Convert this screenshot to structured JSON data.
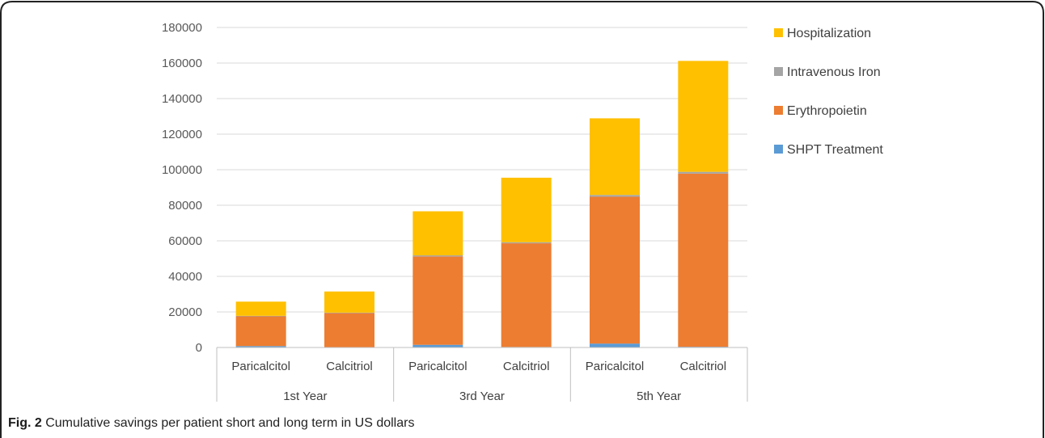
{
  "chart_data": {
    "type": "bar",
    "stacked": true,
    "groups": [
      "1st Year",
      "3rd Year",
      "5th Year"
    ],
    "categories": [
      "Paricalcitol",
      "Calcitriol",
      "Paricalcitol",
      "Calcitriol",
      "Paricalcitol",
      "Calcitriol"
    ],
    "series": [
      {
        "name": "SHPT Treatment",
        "color": "#5B9BD5",
        "values": [
          800,
          200,
          1500,
          300,
          2200,
          400
        ]
      },
      {
        "name": "Erythropoietin",
        "color": "#ED7D31",
        "values": [
          16700,
          19100,
          49700,
          58300,
          82600,
          97400
        ]
      },
      {
        "name": "Intravenous Iron",
        "color": "#A5A5A5",
        "values": [
          300,
          300,
          600,
          600,
          1000,
          1000
        ]
      },
      {
        "name": "Hospitalization",
        "color": "#FFC000",
        "values": [
          8000,
          11900,
          24800,
          36300,
          43100,
          62400
        ]
      }
    ],
    "yticks": [
      "0",
      "20000",
      "40000",
      "60000",
      "80000",
      "100000",
      "120000",
      "140000",
      "160000",
      "180000"
    ],
    "ylim": [
      0,
      180000
    ],
    "grid": true,
    "legend_position": "right"
  },
  "caption": {
    "prefix": "Fig. 2",
    "text": " Cumulative savings per patient short and long term in US dollars"
  }
}
